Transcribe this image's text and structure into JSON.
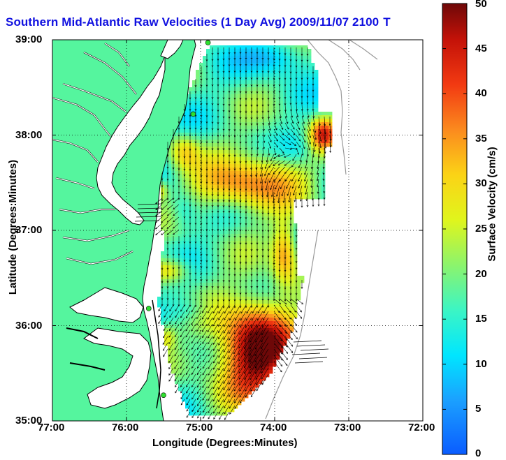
{
  "title": {
    "main": "Southern Mid-Atlantic Raw Velocities (1 Day Avg) 2009/11/07 2100",
    "suffix": "T"
  },
  "map": {
    "xlabel": "Longitude (Degrees:Minutes)",
    "ylabel": "Latitude (Degrees:Minutes)",
    "lon_range": [
      -77,
      -72
    ],
    "lat_range": [
      35,
      39
    ],
    "lon_ticks": [
      "77:00",
      "76:00",
      "75:00",
      "74:00",
      "73:00",
      "72:00"
    ],
    "lat_ticks": [
      "39:00",
      "38:00",
      "37:00",
      "36:00",
      "35:00"
    ],
    "grid": "dotted",
    "land_color": "#55f59e",
    "coast_color": "#000000",
    "isobath_color": "#9a9a9a"
  },
  "colorbar": {
    "label": "Surface Velocity (cm/s)",
    "range": [
      0,
      50
    ],
    "ticks": [
      "50",
      "45",
      "40",
      "35",
      "30",
      "25",
      "20",
      "15",
      "10",
      "5",
      "0"
    ],
    "colormap": "jet"
  },
  "stations": [
    {
      "lon": -74.9,
      "lat": 38.97
    },
    {
      "lon": -75.1,
      "lat": 38.22
    },
    {
      "lon": -75.7,
      "lat": 36.18
    },
    {
      "lon": -75.5,
      "lat": 35.27
    }
  ]
}
